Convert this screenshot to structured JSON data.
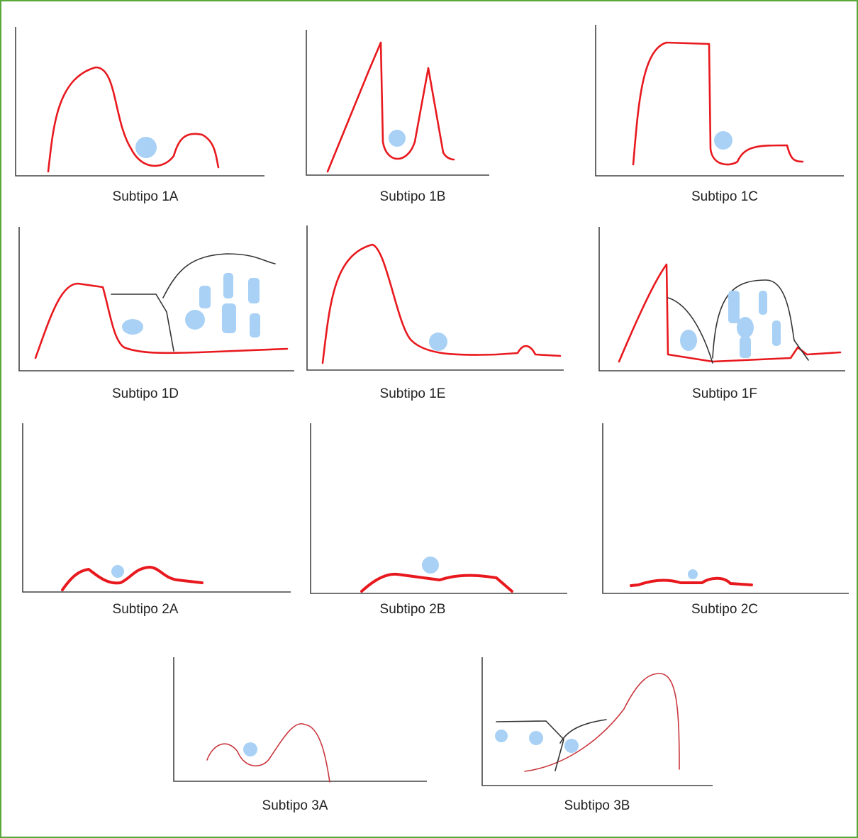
{
  "panels": [
    {
      "label": "Subtipo 1A"
    },
    {
      "label": "Subtipo 1B"
    },
    {
      "label": "Subtipo 1C"
    },
    {
      "label": "Subtipo 1D"
    },
    {
      "label": "Subtipo 1E"
    },
    {
      "label": "Subtipo 1F"
    },
    {
      "label": "Subtipo 2A"
    },
    {
      "label": "Subtipo 2B"
    },
    {
      "label": "Subtipo 2C"
    },
    {
      "label": "Subtipo 3A"
    },
    {
      "label": "Subtipo 3B"
    }
  ]
}
